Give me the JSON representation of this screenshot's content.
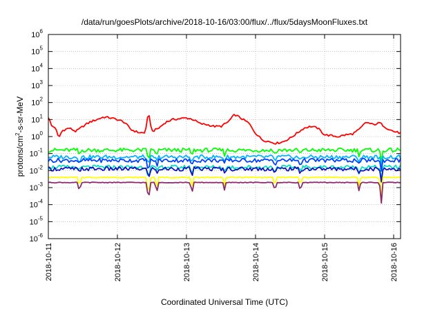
{
  "chart_data": {
    "type": "line",
    "title": "/data/run/goesPlots/archive/2018-10-16/03:00/flux/../flux/5daysMoonFluxes.txt",
    "xlabel": "Coordinated Universal Time (UTC)",
    "ylabel": "protons/cm2-s-sr-MeV",
    "ylabel_parts": {
      "pre": "protons/cm",
      "sup": "2",
      "post": "-s-sr-MeV"
    },
    "yscale": "log",
    "ylim_exp": [
      -6,
      6
    ],
    "ytick_exponents": [
      -6,
      -5,
      -4,
      -3,
      -2,
      -1,
      0,
      1,
      2,
      3,
      4,
      5,
      6
    ],
    "xlim_days": [
      0,
      5.1
    ],
    "xticks": [
      {
        "label": "2018-10-11",
        "day": 0
      },
      {
        "label": "2018-10-12",
        "day": 1
      },
      {
        "label": "2018-10-13",
        "day": 2
      },
      {
        "label": "2018-10-14",
        "day": 3
      },
      {
        "label": "2018-10-15",
        "day": 4
      },
      {
        "label": "2018-10-16",
        "day": 5
      }
    ],
    "grid": true,
    "series": [
      {
        "color": "#ff0000",
        "log10_values": [
          [
            0.0,
            1.15
          ],
          [
            0.05,
            0.6
          ],
          [
            0.1,
            0.55
          ],
          [
            0.15,
            -0.1
          ],
          [
            0.2,
            0.35
          ],
          [
            0.3,
            0.5
          ],
          [
            0.4,
            0.3
          ],
          [
            0.5,
            0.6
          ],
          [
            0.6,
            0.85
          ],
          [
            0.7,
            1.0
          ],
          [
            0.8,
            1.15
          ],
          [
            0.9,
            1.1
          ],
          [
            1.0,
            1.0
          ],
          [
            1.1,
            0.85
          ],
          [
            1.2,
            0.4
          ],
          [
            1.3,
            0.25
          ],
          [
            1.4,
            0.2
          ],
          [
            1.45,
            1.4
          ],
          [
            1.5,
            0.3
          ],
          [
            1.6,
            0.5
          ],
          [
            1.7,
            0.85
          ],
          [
            1.8,
            1.0
          ],
          [
            1.9,
            1.05
          ],
          [
            2.0,
            1.1
          ],
          [
            2.1,
            1.0
          ],
          [
            2.2,
            0.75
          ],
          [
            2.3,
            0.7
          ],
          [
            2.4,
            0.6
          ],
          [
            2.5,
            0.6
          ],
          [
            2.6,
            0.85
          ],
          [
            2.7,
            1.3
          ],
          [
            2.8,
            1.05
          ],
          [
            2.9,
            0.8
          ],
          [
            3.0,
            0.2
          ],
          [
            3.1,
            -0.2
          ],
          [
            3.2,
            -0.3
          ],
          [
            3.3,
            -0.4
          ],
          [
            3.4,
            -0.3
          ],
          [
            3.5,
            -0.1
          ],
          [
            3.6,
            0.2
          ],
          [
            3.7,
            0.5
          ],
          [
            3.8,
            0.6
          ],
          [
            3.9,
            0.5
          ],
          [
            4.0,
            0.1
          ],
          [
            4.1,
            0.05
          ],
          [
            4.2,
            0.0
          ],
          [
            4.3,
            0.1
          ],
          [
            4.4,
            0.15
          ],
          [
            4.5,
            0.4
          ],
          [
            4.6,
            0.85
          ],
          [
            4.7,
            0.7
          ],
          [
            4.8,
            0.8
          ],
          [
            4.9,
            0.5
          ],
          [
            5.0,
            0.3
          ],
          [
            5.1,
            0.2
          ]
        ]
      },
      {
        "color": "#00ff00",
        "log10_values": [
          [
            0,
            -0.8
          ],
          [
            5.1,
            -0.8
          ]
        ]
      },
      {
        "color": "#00b4ff",
        "log10_values": [
          [
            0,
            -1.2
          ],
          [
            5.1,
            -1.2
          ]
        ]
      },
      {
        "color": "#0040ff",
        "log10_values": [
          [
            0,
            -1.4
          ],
          [
            5.1,
            -1.4
          ]
        ]
      },
      {
        "color": "#00e0c0",
        "log10_values": [
          [
            0,
            -1.8
          ],
          [
            5.1,
            -1.8
          ]
        ]
      },
      {
        "color": "#1010c0",
        "log10_values": [
          [
            0,
            -1.9
          ],
          [
            5.1,
            -1.9
          ]
        ]
      },
      {
        "color": "#ffff00",
        "log10_values": [
          [
            0,
            -2.4
          ],
          [
            5.1,
            -2.4
          ]
        ]
      },
      {
        "color": "#8b2a6a",
        "log10_values": [
          [
            0,
            -2.7
          ],
          [
            5.1,
            -2.7
          ]
        ]
      }
    ],
    "dips": [
      {
        "day": 0.45,
        "depth": 0.6
      },
      {
        "day": 1.45,
        "depth": 1.25
      },
      {
        "day": 1.57,
        "depth": 0.65
      },
      {
        "day": 2.08,
        "depth": 0.7
      },
      {
        "day": 2.55,
        "depth": 0.45
      },
      {
        "day": 3.28,
        "depth": 0.55
      },
      {
        "day": 3.65,
        "depth": 0.55
      },
      {
        "day": 4.5,
        "depth": 0.55
      },
      {
        "day": 4.82,
        "depth": 1.3
      }
    ]
  }
}
